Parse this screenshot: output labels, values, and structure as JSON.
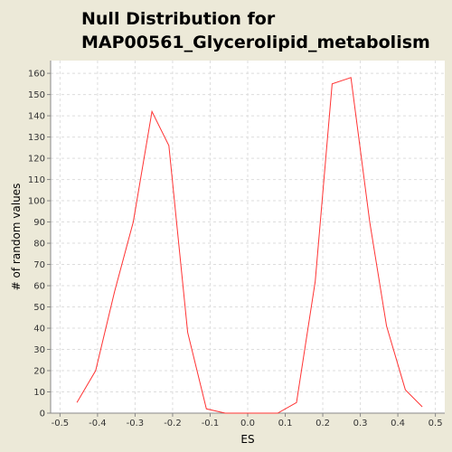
{
  "chart_data": {
    "type": "line",
    "title_lines": [
      "Null Distribution for",
      "MAP00561_Glycerolipid_metabolism"
    ],
    "xlabel": "ES",
    "ylabel": "# of random values",
    "xlim": [
      -0.525,
      0.525
    ],
    "ylim": [
      0,
      166
    ],
    "x_ticks": [
      -0.5,
      -0.4,
      -0.3,
      -0.2,
      -0.1,
      0.0,
      0.1,
      0.2,
      0.3,
      0.4,
      0.5
    ],
    "x_tick_labels": [
      "-0.5",
      "-0.4",
      "-0.3",
      "-0.2",
      "-0.1",
      "0.0",
      "0.1",
      "0.2",
      "0.3",
      "0.4",
      "0.5"
    ],
    "y_ticks": [
      0,
      10,
      20,
      30,
      40,
      50,
      60,
      70,
      80,
      90,
      100,
      110,
      120,
      130,
      140,
      150,
      160
    ],
    "grid": true,
    "series": [
      {
        "color": "#ff3333",
        "x": [
          -0.455,
          -0.405,
          -0.355,
          -0.305,
          -0.255,
          -0.21,
          -0.16,
          -0.11,
          -0.06,
          0.08,
          0.13,
          0.18,
          0.225,
          0.275,
          0.325,
          0.37,
          0.42,
          0.465
        ],
        "y": [
          5,
          20,
          57,
          90,
          142,
          126,
          38,
          2,
          0,
          0,
          5,
          62,
          155,
          158,
          90,
          41,
          11,
          3
        ]
      }
    ]
  },
  "colors": {
    "background": "#ece9d8",
    "plot_background": "#ffffff",
    "grid": "#dddddd",
    "axis": "#888888",
    "line": "#ff3333"
  }
}
